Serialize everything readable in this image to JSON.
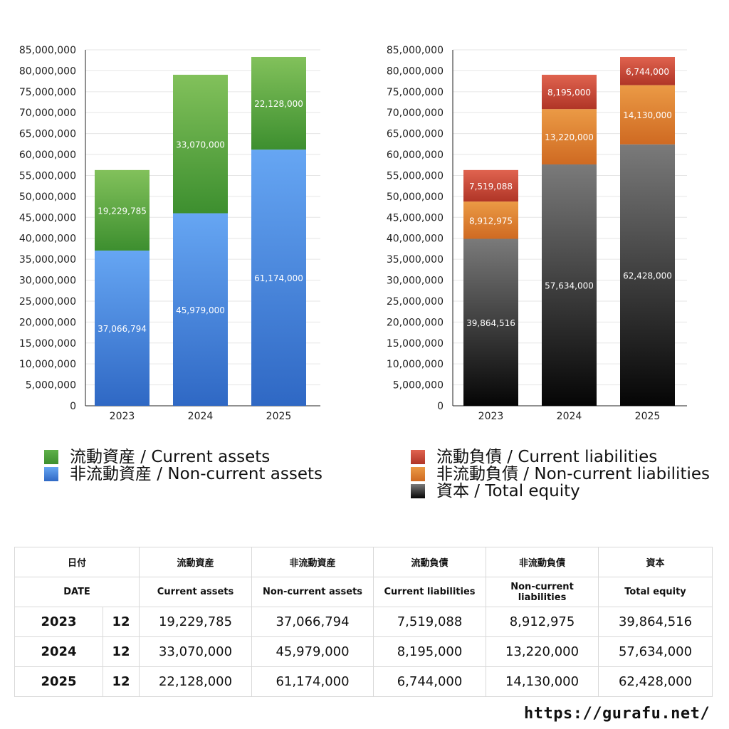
{
  "chart_data": [
    {
      "type": "bar",
      "stacked": true,
      "categories": [
        "2023",
        "2024",
        "2025"
      ],
      "series": [
        {
          "name": "非流動資産 / Non-current assets",
          "values": [
            37066794,
            45979000,
            61174000
          ],
          "labels": [
            "37,066,794",
            "45,979,000",
            "61,174,000"
          ],
          "color_top": "#66a6f3",
          "color_bottom": "#2f68c4"
        },
        {
          "name": "流動資産 / Current assets",
          "values": [
            19229785,
            33070000,
            22128000
          ],
          "labels": [
            "19,229,785",
            "33,070,000",
            "22,128,000"
          ],
          "color_top": "#82c15b",
          "color_bottom": "#3d8f2f"
        }
      ],
      "ylim": [
        0,
        85000000
      ],
      "yticks": [
        "0",
        "5,000,000",
        "10,000,000",
        "15,000,000",
        "20,000,000",
        "25,000,000",
        "30,000,000",
        "35,000,000",
        "40,000,000",
        "45,000,000",
        "50,000,000",
        "55,000,000",
        "60,000,000",
        "65,000,000",
        "70,000,000",
        "75,000,000",
        "80,000,000",
        "85,000,000"
      ],
      "grid": true
    },
    {
      "type": "bar",
      "stacked": true,
      "categories": [
        "2023",
        "2024",
        "2025"
      ],
      "series": [
        {
          "name": "資本 / Total equity",
          "values": [
            39864516,
            57634000,
            62428000
          ],
          "labels": [
            "39,864,516",
            "57,634,000",
            "62,428,000"
          ],
          "color_top": "#7a7a7a",
          "color_bottom": "#050505"
        },
        {
          "name": "非流動負債 / Non-current liabilities",
          "values": [
            8912975,
            13220000,
            14130000
          ],
          "labels": [
            "8,912,975",
            "13,220,000",
            "14,130,000"
          ],
          "color_top": "#eb9a45",
          "color_bottom": "#cf6a22"
        },
        {
          "name": "流動負債 / Current liabilities",
          "values": [
            7519088,
            8195000,
            6744000
          ],
          "labels": [
            "7,519,088",
            "8,195,000",
            "6,744,000"
          ],
          "color_top": "#e0634f",
          "color_bottom": "#b03527"
        }
      ],
      "ylim": [
        0,
        85000000
      ],
      "yticks": [
        "0",
        "5,000,000",
        "10,000,000",
        "15,000,000",
        "20,000,000",
        "25,000,000",
        "30,000,000",
        "35,000,000",
        "40,000,000",
        "45,000,000",
        "50,000,000",
        "55,000,000",
        "60,000,000",
        "65,000,000",
        "70,000,000",
        "75,000,000",
        "80,000,000",
        "85,000,000"
      ],
      "grid": true
    }
  ],
  "legend_left": [
    {
      "label": "流動資産 / Current assets",
      "color": "#4a9b3a"
    },
    {
      "label": "非流動資産 / Non-current assets",
      "color": "#4a86dc"
    }
  ],
  "legend_right": [
    {
      "label": "流動負債 / Current liabilities",
      "color": "#cf4434"
    },
    {
      "label": "非流動負債 / Non-current liabilities",
      "color": "#e08232"
    },
    {
      "label": "資本 / Total equity",
      "color": "#2a2a2a"
    }
  ],
  "table": {
    "header_jp": [
      "日付",
      "流動資産",
      "非流動資産",
      "流動負債",
      "非流動負債",
      "資本"
    ],
    "header_en": [
      "DATE",
      "Current assets",
      "Non-current assets",
      "Current liabilities",
      "Non-current liabilities",
      "Total equity"
    ],
    "rows": [
      {
        "year": "2023",
        "month": "12",
        "values": [
          "19,229,785",
          "37,066,794",
          "7,519,088",
          "8,912,975",
          "39,864,516"
        ]
      },
      {
        "year": "2024",
        "month": "12",
        "values": [
          "33,070,000",
          "45,979,000",
          "8,195,000",
          "13,220,000",
          "57,634,000"
        ]
      },
      {
        "year": "2025",
        "month": "12",
        "values": [
          "22,128,000",
          "61,174,000",
          "6,744,000",
          "14,130,000",
          "62,428,000"
        ]
      }
    ]
  },
  "site_url": "https://gurafu.net/"
}
